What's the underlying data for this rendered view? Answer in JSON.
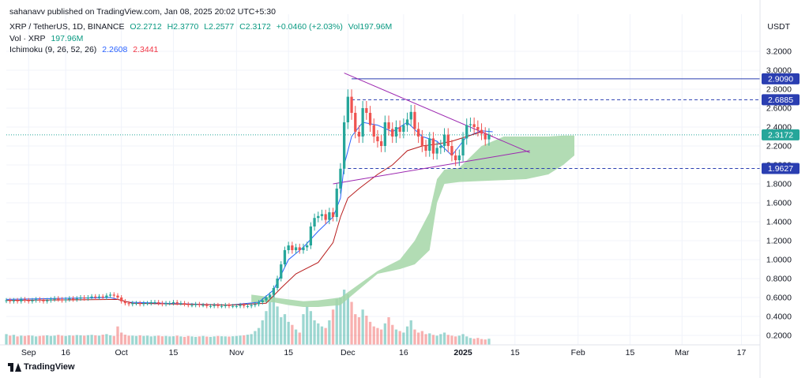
{
  "header": {
    "published": "sahanavv published on TradingView.com, Jan 08, 2025 20:02 UTC+5:30",
    "symbol": "XRP / TetherUS, 1D, BINANCE",
    "open": "O2.2712",
    "high": "H2.3770",
    "low": "L2.2577",
    "close": "C2.3172",
    "change": "+0.0460 (+2.03%)",
    "volume": "Vol197.96M",
    "vol_label": "Vol · XRP",
    "vol_value": "197.96M",
    "ichimoku_label": "Ichimoku (9, 26, 52, 26)",
    "ichimoku_v1": "2.2608",
    "ichimoku_v2": "2.3441"
  },
  "currency": "USDT",
  "brand": "TradingView",
  "colors": {
    "up": "#26a69a",
    "down": "#ef5350",
    "conversion_line": "#2962ff",
    "base_line": "#b71c1c",
    "cloud": "#a5d6a7",
    "level_line": "#2a3eb1",
    "triangle": "#9c27b0",
    "price_label": "#26a69a"
  },
  "chart_data": {
    "type": "candlestick",
    "title": "XRP / TetherUS, 1D, BINANCE",
    "ylim": [
      0.12,
      3.3
    ],
    "y_ticks": [
      "3.2000",
      "3.0000",
      "2.8000",
      "2.6000",
      "2.4000",
      "2.2000",
      "2.0000",
      "1.8000",
      "1.6000",
      "1.4000",
      "1.2000",
      "1.0000",
      "0.8000",
      "0.6000",
      "0.4000",
      "0.2000"
    ],
    "x_ticks": [
      {
        "label": "Sep",
        "day": 6
      },
      {
        "label": "16",
        "day": 16
      },
      {
        "label": "Oct",
        "day": 31
      },
      {
        "label": "15",
        "day": 45
      },
      {
        "label": "Nov",
        "day": 62
      },
      {
        "label": "15",
        "day": 76
      },
      {
        "label": "Dec",
        "day": 92
      },
      {
        "label": "16",
        "day": 107
      },
      {
        "label": "2025",
        "day": 123
      },
      {
        "label": "15",
        "day": 137
      },
      {
        "label": "Feb",
        "day": 154
      },
      {
        "label": "15",
        "day": 168
      },
      {
        "label": "Mar",
        "day": 182
      },
      {
        "label": "17",
        "day": 198
      }
    ],
    "x_start_day": 0,
    "x_end_day": 203,
    "closes": [
      0.57,
      0.56,
      0.57,
      0.56,
      0.58,
      0.57,
      0.56,
      0.57,
      0.58,
      0.57,
      0.56,
      0.57,
      0.58,
      0.59,
      0.58,
      0.57,
      0.58,
      0.59,
      0.58,
      0.59,
      0.6,
      0.59,
      0.6,
      0.61,
      0.6,
      0.61,
      0.6,
      0.62,
      0.63,
      0.62,
      0.6,
      0.56,
      0.54,
      0.53,
      0.54,
      0.54,
      0.53,
      0.54,
      0.54,
      0.55,
      0.55,
      0.54,
      0.53,
      0.54,
      0.54,
      0.55,
      0.54,
      0.54,
      0.53,
      0.52,
      0.52,
      0.53,
      0.52,
      0.52,
      0.51,
      0.51,
      0.52,
      0.51,
      0.51,
      0.52,
      0.51,
      0.51,
      0.51,
      0.52,
      0.51,
      0.51,
      0.52,
      0.53,
      0.55,
      0.57,
      0.6,
      0.63,
      0.7,
      0.8,
      0.95,
      1.1,
      1.15,
      1.1,
      1.13,
      1.1,
      1.13,
      1.15,
      1.35,
      1.44,
      1.46,
      1.48,
      1.42,
      1.5,
      1.45,
      1.75,
      1.96,
      2.45,
      2.72,
      2.55,
      2.35,
      2.3,
      2.6,
      2.55,
      2.42,
      2.3,
      2.25,
      2.2,
      2.45,
      2.38,
      2.3,
      2.4,
      2.35,
      2.42,
      2.48,
      2.56,
      2.38,
      2.3,
      2.2,
      2.15,
      2.28,
      2.12,
      2.18,
      2.2,
      2.32,
      2.2,
      2.1,
      2.05,
      2.1,
      2.28,
      2.42,
      2.43,
      2.4,
      2.37,
      2.33,
      2.27,
      2.32
    ],
    "volumes": [
      70,
      60,
      65,
      55,
      60,
      58,
      62,
      60,
      55,
      58,
      60,
      62,
      58,
      60,
      65,
      60,
      58,
      62,
      60,
      64,
      62,
      60,
      63,
      65,
      62,
      60,
      66,
      70,
      62,
      58,
      120,
      80,
      66,
      60,
      60,
      58,
      62,
      58,
      60,
      55,
      58,
      60,
      56,
      58,
      55,
      56,
      60,
      55,
      52,
      58,
      55,
      52,
      55,
      58,
      54,
      52,
      55,
      58,
      56,
      55,
      54,
      56,
      58,
      60,
      62,
      66,
      70,
      90,
      110,
      160,
      220,
      280,
      330,
      250,
      180,
      200,
      150,
      130,
      100,
      80,
      200,
      250,
      220,
      160,
      140,
      120,
      110,
      160,
      230,
      300,
      310,
      360,
      330,
      280,
      200,
      180,
      230,
      190,
      150,
      120,
      110,
      100,
      140,
      180,
      130,
      100,
      90,
      80,
      120,
      160,
      100,
      80,
      90,
      70,
      75,
      65,
      60,
      70,
      80,
      65,
      60,
      55,
      60,
      70,
      55,
      45,
      40,
      45,
      38,
      35,
      40
    ],
    "conversion_line": [
      [
        0,
        0.58
      ],
      [
        28,
        0.6
      ],
      [
        33,
        0.55
      ],
      [
        60,
        0.52
      ],
      [
        68,
        0.55
      ],
      [
        72,
        0.68
      ],
      [
        76,
        1.0
      ],
      [
        80,
        1.13
      ],
      [
        84,
        1.3
      ],
      [
        88,
        1.45
      ],
      [
        90,
        1.65
      ],
      [
        91,
        2.0
      ],
      [
        93,
        2.3
      ],
      [
        96,
        2.45
      ],
      [
        100,
        2.42
      ],
      [
        104,
        2.35
      ],
      [
        108,
        2.45
      ],
      [
        112,
        2.3
      ],
      [
        116,
        2.25
      ],
      [
        120,
        2.1
      ],
      [
        124,
        2.3
      ],
      [
        128,
        2.36
      ],
      [
        131,
        2.35
      ]
    ],
    "base_line": [
      [
        0,
        0.57
      ],
      [
        30,
        0.58
      ],
      [
        34,
        0.54
      ],
      [
        60,
        0.52
      ],
      [
        70,
        0.54
      ],
      [
        74,
        0.7
      ],
      [
        78,
        0.85
      ],
      [
        84,
        0.97
      ],
      [
        88,
        1.18
      ],
      [
        90,
        1.45
      ],
      [
        92,
        1.65
      ],
      [
        95,
        1.75
      ],
      [
        100,
        1.9
      ],
      [
        104,
        2.0
      ],
      [
        108,
        2.15
      ],
      [
        112,
        2.2
      ],
      [
        116,
        2.22
      ],
      [
        120,
        2.25
      ],
      [
        124,
        2.3
      ],
      [
        128,
        2.35
      ],
      [
        131,
        2.3
      ]
    ],
    "cloud_upper": [
      [
        66,
        0.63
      ],
      [
        72,
        0.6
      ],
      [
        76,
        0.58
      ],
      [
        80,
        0.56
      ],
      [
        84,
        0.57
      ],
      [
        90,
        0.6
      ],
      [
        100,
        0.88
      ],
      [
        106,
        1.0
      ],
      [
        110,
        1.2
      ],
      [
        114,
        1.5
      ],
      [
        116,
        1.85
      ],
      [
        118,
        1.95
      ],
      [
        122,
        1.97
      ],
      [
        128,
        2.2
      ],
      [
        134,
        2.3
      ],
      [
        140,
        2.3
      ],
      [
        146,
        2.3
      ],
      [
        150,
        2.31
      ],
      [
        153,
        2.31
      ]
    ],
    "cloud_lower": [
      [
        66,
        0.55
      ],
      [
        72,
        0.55
      ],
      [
        76,
        0.52
      ],
      [
        80,
        0.5
      ],
      [
        84,
        0.5
      ],
      [
        90,
        0.52
      ],
      [
        100,
        0.85
      ],
      [
        106,
        0.9
      ],
      [
        110,
        0.95
      ],
      [
        114,
        1.1
      ],
      [
        116,
        1.6
      ],
      [
        118,
        1.8
      ],
      [
        122,
        1.82
      ],
      [
        128,
        1.83
      ],
      [
        134,
        1.84
      ],
      [
        140,
        1.85
      ],
      [
        146,
        1.9
      ],
      [
        150,
        2.0
      ],
      [
        153,
        2.1
      ]
    ],
    "levels": [
      {
        "value": 2.909,
        "label": "2.9090",
        "style": "solid"
      },
      {
        "value": 2.6885,
        "label": "2.6885",
        "style": "dashed"
      },
      {
        "value": 1.9627,
        "label": "1.9627",
        "style": "dashed"
      }
    ],
    "current_price": {
      "value": 2.3172,
      "label": "2.3172"
    },
    "triangle_upper": [
      [
        91,
        2.97
      ],
      [
        141,
        2.13
      ]
    ],
    "triangle_lower": [
      [
        88,
        1.8
      ],
      [
        141,
        2.15
      ]
    ]
  }
}
